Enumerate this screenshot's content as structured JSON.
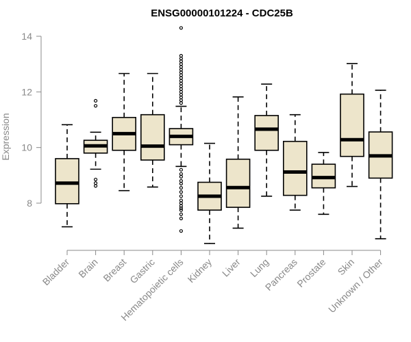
{
  "chart_data": {
    "type": "boxplot",
    "title": "ENSG00000101224 - CDC25B",
    "ylabel": "Expression",
    "xlabel": "",
    "ylim": [
      6.4,
      14.4
    ],
    "yticks": [
      8,
      10,
      12,
      14
    ],
    "grid": false,
    "box_fill": "#ede5cb",
    "box_stroke": "#000000",
    "categories": [
      "Bladder",
      "Brain",
      "Breast",
      "Gastric",
      "Hematopoietic cells",
      "Kidney",
      "Liver",
      "Lung",
      "Pancreas",
      "Prostate",
      "Skin",
      "Unknown / Other"
    ],
    "boxes": [
      {
        "category": "Bladder",
        "whisker_low": 7.15,
        "q1": 7.98,
        "median": 8.72,
        "q3": 9.6,
        "whisker_high": 10.82,
        "outliers": []
      },
      {
        "category": "Brain",
        "whisker_low": 9.22,
        "q1": 9.8,
        "median": 10.06,
        "q3": 10.26,
        "whisker_high": 10.55,
        "outliers": [
          8.62,
          8.72,
          8.85,
          11.5,
          11.68
        ]
      },
      {
        "category": "Breast",
        "whisker_low": 8.45,
        "q1": 9.9,
        "median": 10.5,
        "q3": 11.08,
        "whisker_high": 12.66,
        "outliers": []
      },
      {
        "category": "Gastric",
        "whisker_low": 8.58,
        "q1": 9.55,
        "median": 10.05,
        "q3": 11.18,
        "whisker_high": 12.66,
        "outliers": []
      },
      {
        "category": "Hematopoietic cells",
        "whisker_low": 9.32,
        "q1": 10.1,
        "median": 10.4,
        "q3": 10.68,
        "whisker_high": 11.48,
        "outliers": [
          7.0,
          7.45,
          7.6,
          7.75,
          7.82,
          7.9,
          8.0,
          8.1,
          8.25,
          8.4,
          8.55,
          8.7,
          8.8,
          8.95,
          9.05,
          9.2,
          11.6,
          11.7,
          11.8,
          11.9,
          12.0,
          12.1,
          12.2,
          12.3,
          12.4,
          12.5,
          12.6,
          12.7,
          12.8,
          12.9,
          13.0,
          13.1,
          13.2,
          13.3,
          14.3
        ]
      },
      {
        "category": "Kidney",
        "whisker_low": 6.55,
        "q1": 7.75,
        "median": 8.25,
        "q3": 8.75,
        "whisker_high": 10.15,
        "outliers": []
      },
      {
        "category": "Liver",
        "whisker_low": 7.1,
        "q1": 7.85,
        "median": 8.56,
        "q3": 9.58,
        "whisker_high": 11.82,
        "outliers": []
      },
      {
        "category": "Lung",
        "whisker_low": 8.25,
        "q1": 9.9,
        "median": 10.66,
        "q3": 11.15,
        "whisker_high": 12.28,
        "outliers": []
      },
      {
        "category": "Pancreas",
        "whisker_low": 7.75,
        "q1": 8.28,
        "median": 9.12,
        "q3": 10.22,
        "whisker_high": 11.18,
        "outliers": []
      },
      {
        "category": "Prostate",
        "whisker_low": 7.6,
        "q1": 8.55,
        "median": 8.92,
        "q3": 9.4,
        "whisker_high": 9.82,
        "outliers": []
      },
      {
        "category": "Skin",
        "whisker_low": 8.6,
        "q1": 9.68,
        "median": 10.28,
        "q3": 11.92,
        "whisker_high": 13.02,
        "outliers": []
      },
      {
        "category": "Unknown / Other",
        "whisker_low": 6.72,
        "q1": 8.9,
        "median": 9.7,
        "q3": 10.56,
        "whisker_high": 12.06,
        "outliers": []
      }
    ]
  }
}
